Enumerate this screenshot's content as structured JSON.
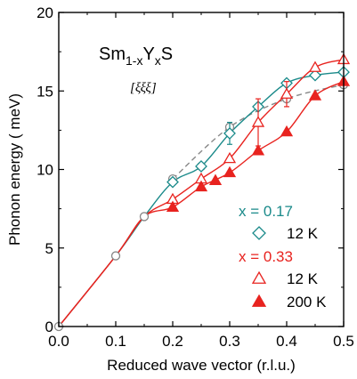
{
  "chart_data": {
    "type": "scatter",
    "xlabel": "Reduced wave vector (r.l.u.)",
    "ylabel": "Phonon energy  ( meV)",
    "xlim": [
      0,
      0.5
    ],
    "ylim": [
      0,
      20
    ],
    "x_ticks": [
      "0.0",
      "0.1",
      "0.2",
      "0.3",
      "0.4",
      "0.5"
    ],
    "y_ticks": [
      "0",
      "5",
      "10",
      "15",
      "20"
    ],
    "x_tick_values": [
      0,
      0.1,
      0.2,
      0.3,
      0.4,
      0.5
    ],
    "y_tick_values": [
      0,
      5,
      10,
      15,
      20
    ],
    "annotation": {
      "formula_base": "Sm",
      "formula_sub1": "1-x",
      "formula_mid": "Y",
      "formula_sub2": "x",
      "formula_end": "S",
      "direction": "[ξξξ]"
    },
    "legend": {
      "group1_label": "x = 0.17",
      "group1_color": "#1a8a8a",
      "group1_item": "12 K",
      "group2_label": "x = 0.33",
      "group2_color": "#e8231f",
      "group2_item_a": "12 K",
      "group2_item_b": "200 K"
    },
    "series": [
      {
        "marker": "circle-open",
        "color": "#888888",
        "x": [
          0,
          0.1,
          0.15,
          0.2,
          0.25,
          0.3,
          0.4,
          0.5
        ],
        "y": [
          0,
          4.5,
          7.0,
          9.4,
          10.2,
          12.7,
          14.5,
          15.4
        ]
      },
      {
        "marker": "diamond-open",
        "color": "#1a8a8a",
        "x": [
          0.2,
          0.25,
          0.3,
          0.35,
          0.4,
          0.45,
          0.5
        ],
        "y": [
          9.2,
          10.2,
          12.3,
          14.0,
          15.5,
          16.0,
          16.2
        ],
        "errors": [
          0,
          0,
          0.7,
          0,
          0,
          0,
          0
        ]
      },
      {
        "marker": "triangle-open",
        "color": "#e8231f",
        "x": [
          0.2,
          0.25,
          0.3,
          0.35,
          0.4,
          0.45,
          0.5
        ],
        "y": [
          8.1,
          9.4,
          10.7,
          13.0,
          14.8,
          16.5,
          17.0
        ],
        "errors": [
          0,
          0,
          0,
          1.5,
          0.8,
          0,
          0
        ]
      },
      {
        "marker": "triangle-filled",
        "color": "#e8231f",
        "x": [
          0.2,
          0.25,
          0.275,
          0.3,
          0.35,
          0.4,
          0.45,
          0.5
        ],
        "y": [
          7.6,
          8.9,
          9.3,
          9.8,
          11.2,
          12.4,
          14.7,
          15.6
        ]
      }
    ],
    "curves": [
      {
        "style": "dashed",
        "color": "#888888",
        "x": [
          0.2,
          0.3,
          0.4,
          0.5
        ],
        "y": [
          9.4,
          12.7,
          14.5,
          15.4
        ]
      },
      {
        "style": "solid",
        "color": "#1a8a8a",
        "x": [
          0,
          0.1,
          0.15,
          0.2,
          0.25,
          0.3,
          0.35,
          0.4,
          0.45,
          0.5
        ],
        "y": [
          0,
          4.5,
          7.0,
          9.2,
          10.2,
          12.3,
          14.0,
          15.5,
          16.0,
          16.2
        ]
      },
      {
        "style": "solid",
        "color": "#e8231f",
        "x": [
          0,
          0.1,
          0.15,
          0.2,
          0.25,
          0.3,
          0.35,
          0.4,
          0.45,
          0.5
        ],
        "y": [
          0,
          4.5,
          7.0,
          8.1,
          9.4,
          10.7,
          13.0,
          14.8,
          16.5,
          17.0
        ]
      },
      {
        "style": "solid",
        "color": "#e8231f",
        "x": [
          0,
          0.1,
          0.15,
          0.2,
          0.25,
          0.3,
          0.35,
          0.4,
          0.45,
          0.5
        ],
        "y": [
          0,
          4.5,
          7.0,
          7.6,
          8.9,
          9.8,
          11.2,
          12.4,
          14.7,
          15.6
        ]
      }
    ]
  }
}
